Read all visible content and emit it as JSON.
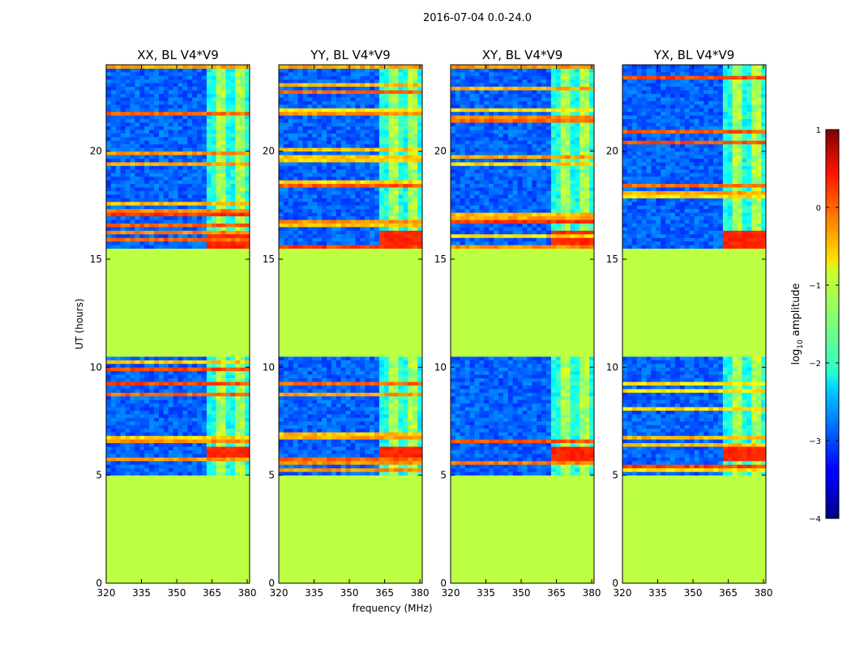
{
  "figure": {
    "suptitle": "2016-07-04 0.0-24.0"
  },
  "chart_data": [
    {
      "type": "heatmap",
      "title": "XX, BL V4*V9",
      "xlabel": "",
      "ylabel": "UT (hours)",
      "xlim": [
        320,
        381
      ],
      "ylim": [
        0,
        24
      ],
      "xticks": [
        "320",
        "335",
        "350",
        "365",
        "380"
      ],
      "yticks": [
        "0",
        "5",
        "10",
        "15",
        "20"
      ],
      "z_units": "log10 amplitude",
      "flagged_ranges_ut": [
        [
          0,
          5.0
        ],
        [
          10.5,
          15.5
        ]
      ],
      "flagged_value": -1.2,
      "strong_band_mhz": [
        363,
        380
      ],
      "background_value": -2.9
    },
    {
      "type": "heatmap",
      "title": "YY, BL V4*V9",
      "xlabel": "frequency (MHz)",
      "ylabel": "",
      "xlim": [
        320,
        381
      ],
      "ylim": [
        0,
        24
      ],
      "xticks": [
        "320",
        "335",
        "350",
        "365",
        "380"
      ],
      "yticks": [
        "0",
        "5",
        "10",
        "15",
        "20"
      ],
      "z_units": "log10 amplitude",
      "flagged_ranges_ut": [
        [
          0,
          5.0
        ],
        [
          10.5,
          15.5
        ]
      ],
      "flagged_value": -1.2,
      "strong_band_mhz": [
        363,
        380
      ],
      "background_value": -2.9
    },
    {
      "type": "heatmap",
      "title": "XY, BL V4*V9",
      "xlabel": "",
      "ylabel": "",
      "xlim": [
        320,
        381
      ],
      "ylim": [
        0,
        24
      ],
      "xticks": [
        "320",
        "335",
        "350",
        "365",
        "380"
      ],
      "yticks": [
        "0",
        "5",
        "10",
        "15",
        "20"
      ],
      "z_units": "log10 amplitude",
      "flagged_ranges_ut": [
        [
          0,
          5.0
        ],
        [
          10.5,
          15.5
        ]
      ],
      "flagged_value": -1.2,
      "strong_band_mhz": [
        363,
        380
      ],
      "background_value": -2.9
    },
    {
      "type": "heatmap",
      "title": "YX, BL V4*V9",
      "xlabel": "",
      "ylabel": "",
      "xlim": [
        320,
        381
      ],
      "ylim": [
        0,
        24
      ],
      "xticks": [
        "320",
        "335",
        "350",
        "365",
        "380"
      ],
      "yticks": [
        "0",
        "5",
        "10",
        "15",
        "20"
      ],
      "z_units": "log10 amplitude",
      "flagged_ranges_ut": [
        [
          0,
          5.0
        ],
        [
          10.5,
          15.5
        ]
      ],
      "flagged_value": -1.2,
      "strong_band_mhz": [
        363,
        380
      ],
      "background_value": -2.9
    }
  ],
  "colorbar": {
    "label_prefix": "log",
    "label_sub": "10",
    "label_suffix": " amplitude",
    "range": [
      -4,
      1
    ],
    "ticks": [
      "1",
      "0",
      "−1",
      "−2",
      "−3",
      "−4"
    ]
  }
}
